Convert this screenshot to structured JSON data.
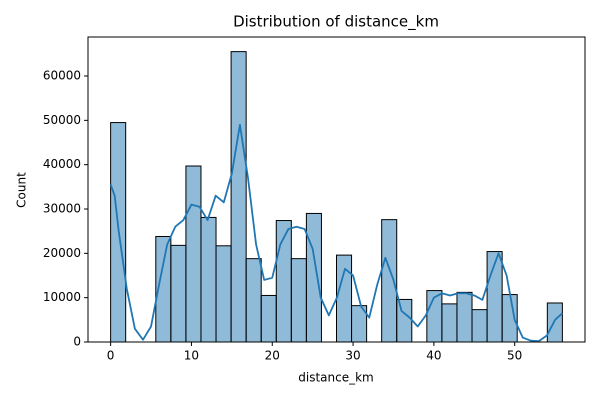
{
  "chart_data": {
    "type": "histogram",
    "title": "Distribution of distance_km",
    "xlabel": "distance_km",
    "ylabel": "Count",
    "bins": [
      0,
      1.8633,
      3.7267,
      5.59,
      7.4533,
      9.3167,
      11.18,
      13.0433,
      14.9067,
      16.77,
      18.6333,
      20.4967,
      22.36,
      24.2233,
      26.0867,
      27.95,
      29.8133,
      31.6767,
      33.54,
      35.4033,
      37.2667,
      39.13,
      40.9933,
      42.8567,
      44.72,
      46.5833,
      48.4467,
      50.31,
      52.1733,
      54.0367,
      55.9
    ],
    "values": [
      49500,
      0,
      0,
      23800,
      21800,
      39700,
      28100,
      21700,
      65500,
      18800,
      10500,
      27400,
      18800,
      29000,
      0,
      19600,
      8200,
      0,
      27600,
      9600,
      0,
      11600,
      8600,
      11200,
      7300,
      20400,
      10700,
      0,
      0,
      8800
    ],
    "color": "#1f77b4",
    "kde": {
      "color": "#1f77b4",
      "x": [
        0,
        0.5,
        1,
        2,
        3,
        4,
        5,
        6,
        7,
        8,
        9,
        10,
        11,
        12,
        13,
        14,
        15,
        16,
        17,
        18,
        19,
        20,
        21,
        22,
        23,
        24,
        25,
        26,
        27,
        28,
        29,
        30,
        31,
        32,
        33,
        34,
        35,
        36,
        37,
        38,
        39,
        40,
        41,
        42,
        43,
        44,
        45,
        46,
        47,
        48,
        49,
        50,
        51,
        52,
        53,
        54,
        55,
        55.9
      ],
      "values": [
        35500,
        33000,
        25000,
        12000,
        3000,
        500,
        3500,
        13000,
        22000,
        26000,
        27500,
        31000,
        30500,
        27500,
        33000,
        31500,
        38000,
        49000,
        37000,
        22000,
        14000,
        14500,
        22000,
        25500,
        26000,
        25500,
        21000,
        10000,
        6000,
        10000,
        16500,
        15000,
        8000,
        5500,
        13000,
        19000,
        14000,
        7000,
        5500,
        3500,
        6000,
        10000,
        11000,
        10500,
        11000,
        11000,
        10500,
        9500,
        15000,
        20000,
        15000,
        5000,
        1000,
        300,
        200,
        1500,
        5000,
        6500
      ]
    },
    "xlim": [
      -2.8,
      58.7
    ],
    "ylim": [
      0,
      68800
    ],
    "xticks": [
      0,
      10,
      20,
      30,
      40,
      50
    ],
    "yticks": [
      0,
      10000,
      20000,
      30000,
      40000,
      50000,
      60000
    ]
  }
}
